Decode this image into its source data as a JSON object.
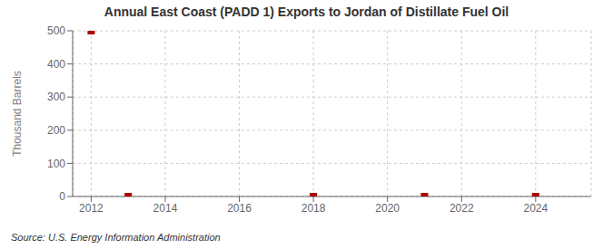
{
  "chart_data": {
    "type": "scatter",
    "title": "Annual East Coast (PADD 1) Exports to Jordan of Distillate Fuel Oil",
    "ylabel": "Thousand Barrels",
    "annotations": [
      "Source: U.S. Energy Information Administration"
    ],
    "x": [
      2012,
      2013,
      2018,
      2021,
      2024
    ],
    "values": [
      500,
      0,
      0,
      0,
      0
    ],
    "color": "#aa0000",
    "marker": "square",
    "xlim": [
      2011.5,
      2025.5
    ],
    "xticks": [
      2012,
      2014,
      2016,
      2018,
      2020,
      2022,
      2024
    ],
    "ylim": [
      0,
      500
    ],
    "yticks": [
      0,
      100,
      200,
      300,
      400,
      500
    ],
    "grid": true
  }
}
